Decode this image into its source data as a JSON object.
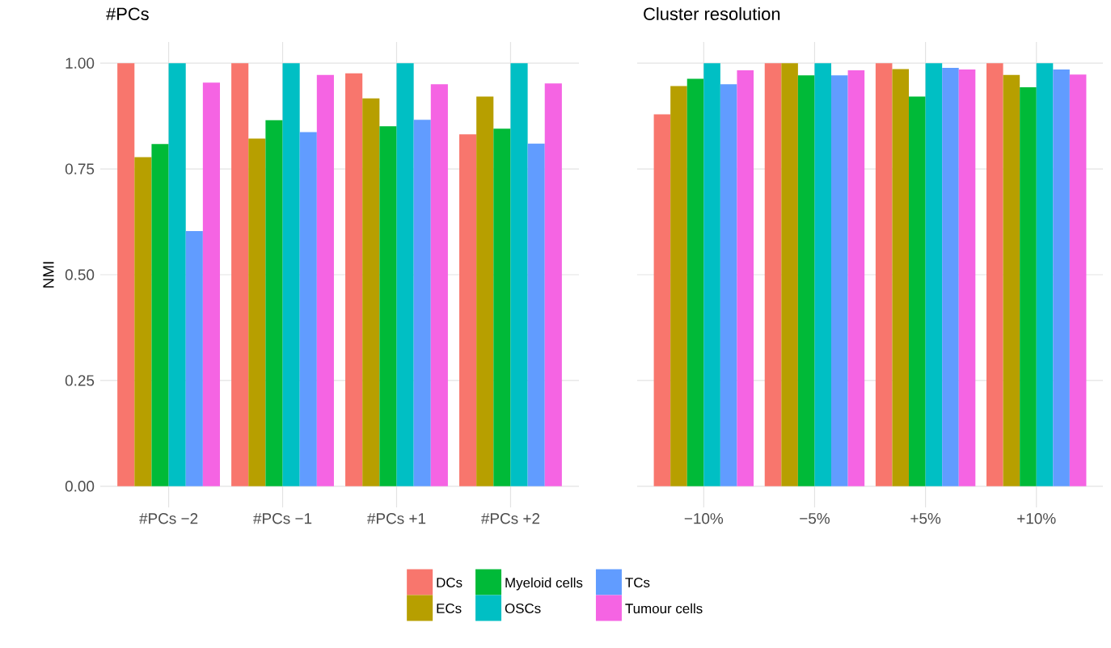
{
  "chart_data": [
    {
      "type": "bar",
      "title": "#PCs",
      "ylabel": "NMI",
      "categories": [
        "#PCs −2",
        "#PCs −1",
        "#PCs +1",
        "#PCs +2"
      ],
      "ylim": [
        -0.05,
        1.05
      ],
      "yticks": [
        {
          "value": 0,
          "label": "0.00"
        },
        {
          "value": 0.25,
          "label": "0.25"
        },
        {
          "value": 0.5,
          "label": "0.50"
        },
        {
          "value": 0.75,
          "label": "0.75"
        },
        {
          "value": 1,
          "label": "1.00"
        }
      ],
      "grid": true,
      "legend": "bottom",
      "series": [
        {
          "name": "DCs",
          "color": "#f8766d",
          "values": [
            1.0,
            1.0,
            0.976,
            0.832
          ]
        },
        {
          "name": "ECs",
          "color": "#b79f00",
          "values": [
            0.778,
            0.822,
            0.917,
            0.921
          ]
        },
        {
          "name": "Myeloid cells",
          "color": "#00ba38",
          "values": [
            0.809,
            0.865,
            0.851,
            0.845
          ]
        },
        {
          "name": "OSCs",
          "color": "#00bfc4",
          "values": [
            1.0,
            1.0,
            1.0,
            1.0
          ]
        },
        {
          "name": "TCs",
          "color": "#619cff",
          "values": [
            0.603,
            0.837,
            0.866,
            0.81
          ]
        },
        {
          "name": "Tumour cells",
          "color": "#f564e3",
          "values": [
            0.954,
            0.972,
            0.95,
            0.952
          ]
        }
      ]
    },
    {
      "type": "bar",
      "title": "Cluster resolution",
      "categories": [
        "−10%",
        "−5%",
        "+5%",
        "+10%"
      ],
      "ylim": [
        -0.05,
        1.05
      ],
      "yticks": [
        0,
        0.25,
        0.5,
        0.75,
        1
      ],
      "grid": true,
      "tick_labels": "x",
      "series": [
        {
          "color": "#f8766d",
          "values": [
            0.879,
            1.0,
            1.0,
            1.0
          ]
        },
        {
          "color": "#b79f00",
          "values": [
            0.946,
            1.0,
            0.986,
            0.972
          ]
        },
        {
          "color": "#00ba38",
          "values": [
            0.963,
            0.971,
            0.921,
            0.943
          ]
        },
        {
          "color": "#00bfc4",
          "values": [
            1.0,
            1.0,
            1.0,
            1.0
          ]
        },
        {
          "color": "#619cff",
          "values": [
            0.95,
            0.971,
            0.989,
            0.985
          ]
        },
        {
          "color": "#f564e3",
          "values": [
            0.983,
            0.983,
            0.985,
            0.973
          ]
        }
      ]
    }
  ]
}
